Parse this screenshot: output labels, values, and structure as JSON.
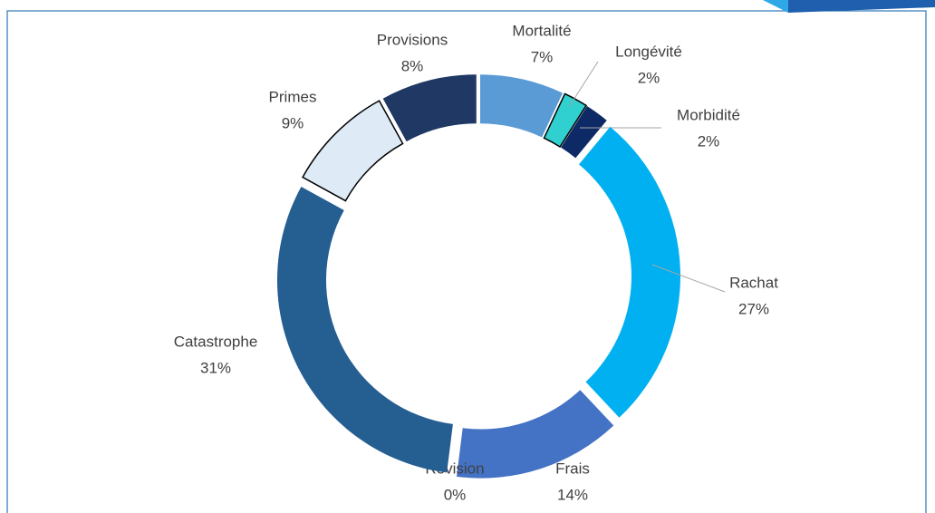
{
  "chart_data": {
    "type": "donut",
    "categories": [
      "Mortalité",
      "Longévité",
      "Morbidité",
      "Rachat",
      "Frais",
      "Révision",
      "Catastrophe",
      "Primes",
      "Provisions"
    ],
    "values": [
      7,
      2,
      2,
      27,
      14,
      0,
      31,
      9,
      8
    ],
    "value_labels": [
      "7%",
      "2%",
      "2%",
      "27%",
      "14%",
      "0%",
      "31%",
      "9%",
      "8%"
    ],
    "colors": [
      "#5b9bd5",
      "#2fd0cf",
      "#0d2a66",
      "#00b0f0",
      "#4472c4",
      "#7f7f7f",
      "#255e91",
      "#deebf7",
      "#1f3864"
    ],
    "edgecolors": [
      "none",
      "#000000",
      "none",
      "none",
      "none",
      "none",
      "none",
      "#000000",
      "none"
    ]
  }
}
